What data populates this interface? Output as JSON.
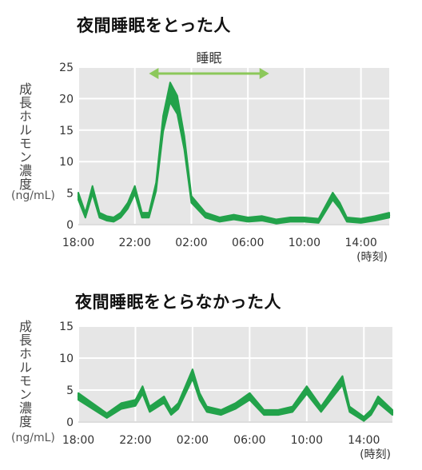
{
  "chart_data": [
    {
      "type": "area",
      "title": "夜間睡眠をとった人",
      "ylabel": "成長ホルモン濃度",
      "yunit": "(ng/mL)",
      "xunit": "(時刻)",
      "x_tick_labels": [
        "18:00",
        "22:00",
        "02:00",
        "06:00",
        "10:00",
        "14:00"
      ],
      "y_ticks": [
        0,
        5,
        10,
        15,
        20,
        25
      ],
      "ylim": [
        0,
        25
      ],
      "grid": true,
      "annotation": {
        "label": "睡眠",
        "from": "23:00",
        "to": "07:30"
      },
      "series": [
        {
          "color": "#22a24a",
          "x": [
            "18:00",
            "18:30",
            "19:00",
            "19:30",
            "20:00",
            "20:30",
            "21:00",
            "21:30",
            "22:00",
            "22:30",
            "23:00",
            "23:30",
            "00:00",
            "00:30",
            "01:00",
            "01:30",
            "02:00",
            "03:00",
            "04:00",
            "05:00",
            "06:00",
            "07:00",
            "08:00",
            "09:00",
            "10:00",
            "11:00",
            "12:00",
            "12:30",
            "13:00",
            "14:00",
            "15:00",
            "16:00"
          ],
          "values": [
            4.5,
            1.5,
            5.5,
            1.5,
            1,
            0.8,
            1.5,
            3,
            5.5,
            1.5,
            1.5,
            6,
            16,
            21,
            19,
            13,
            4,
            1.5,
            0.8,
            1.2,
            0.8,
            1,
            0.5,
            0.8,
            0.8,
            0.6,
            4.5,
            3,
            0.8,
            0.6,
            1,
            1.5
          ]
        }
      ]
    },
    {
      "type": "area",
      "title": "夜間睡眠をとらなかった人",
      "ylabel": "成長ホルモン濃度",
      "yunit": "(ng/mL)",
      "xunit": "(時刻)",
      "x_tick_labels": [
        "18:00",
        "22:00",
        "02:00",
        "06:00",
        "10:00",
        "14:00"
      ],
      "y_ticks": [
        0,
        5,
        10,
        15
      ],
      "ylim": [
        0,
        15
      ],
      "grid": true,
      "series": [
        {
          "color": "#22a24a",
          "x": [
            "18:00",
            "19:00",
            "20:00",
            "21:00",
            "22:00",
            "22:30",
            "23:00",
            "00:00",
            "00:30",
            "01:00",
            "02:00",
            "02:30",
            "03:00",
            "04:00",
            "05:00",
            "06:00",
            "07:00",
            "08:00",
            "09:00",
            "10:00",
            "11:00",
            "12:00",
            "12:30",
            "13:00",
            "14:00",
            "14:30",
            "15:00",
            "16:00"
          ],
          "values": [
            4,
            2.5,
            1,
            2.5,
            3,
            5,
            2,
            3.5,
            1.5,
            2.5,
            7.5,
            4,
            2,
            1.5,
            2.5,
            4,
            1.5,
            1.5,
            2,
            5,
            2,
            5,
            6.5,
            2,
            0.5,
            1.5,
            3.5,
            1.5
          ]
        }
      ]
    }
  ]
}
